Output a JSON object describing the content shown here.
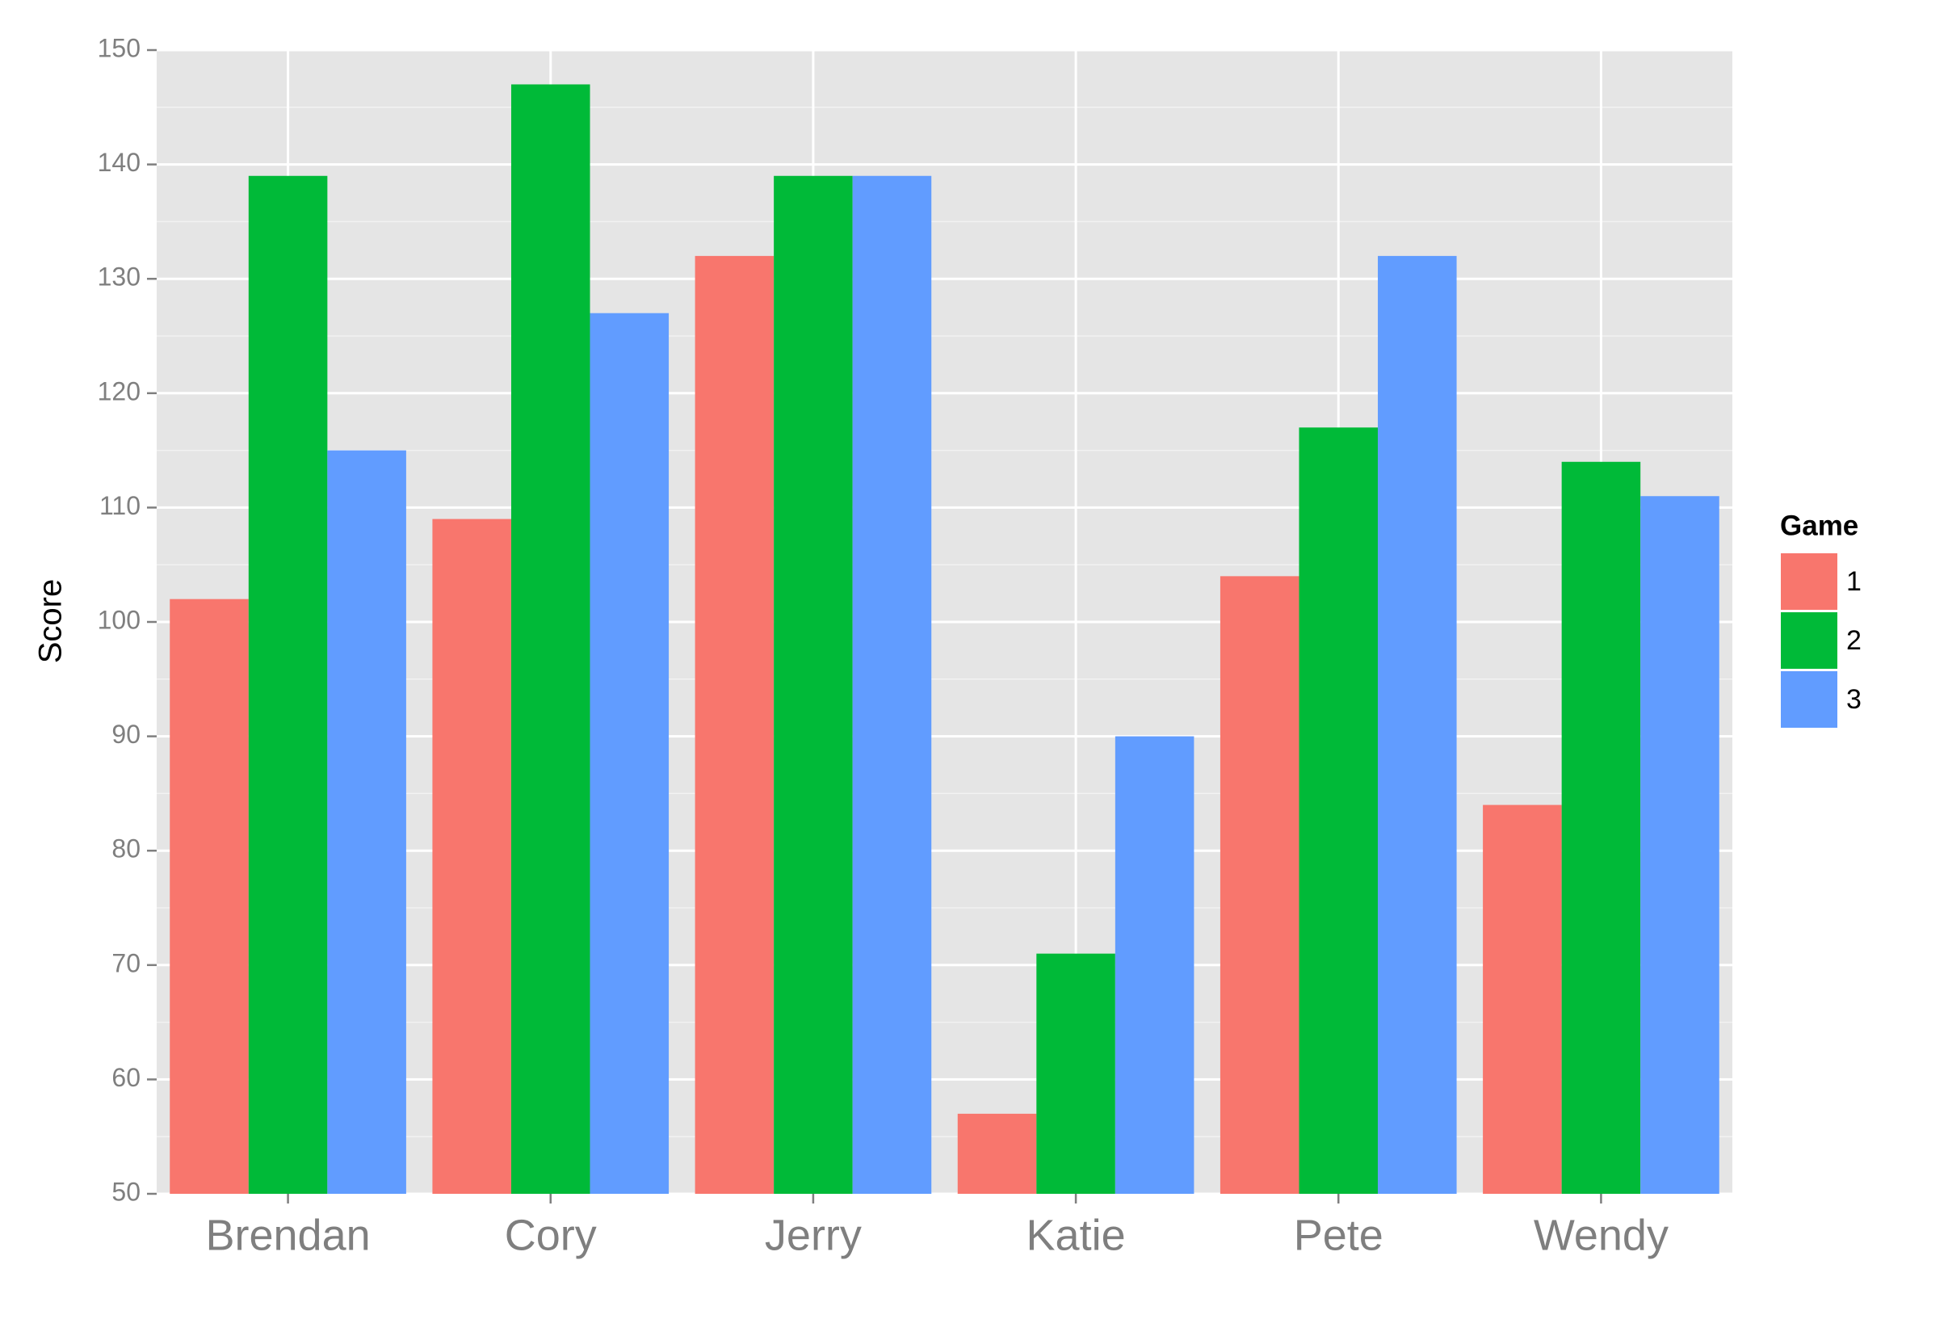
{
  "chart_data": {
    "type": "bar",
    "y_label": "Score",
    "legend_title": "Game",
    "categories": [
      "Brendan",
      "Cory",
      "Jerry",
      "Katie",
      "Pete",
      "Wendy"
    ],
    "series": [
      {
        "name": "1",
        "color": "#f8766d",
        "values": [
          102,
          109,
          132,
          57,
          104,
          84
        ]
      },
      {
        "name": "2",
        "color": "#00ba38",
        "values": [
          139,
          147,
          139,
          71,
          117,
          114
        ]
      },
      {
        "name": "3",
        "color": "#619cff",
        "values": [
          115,
          127,
          139,
          90,
          132,
          111
        ]
      }
    ],
    "ylim": [
      50,
      150
    ],
    "yticks": [
      50,
      60,
      70,
      80,
      90,
      100,
      110,
      120,
      130,
      140,
      150
    ],
    "grid": true,
    "legend": "right"
  }
}
